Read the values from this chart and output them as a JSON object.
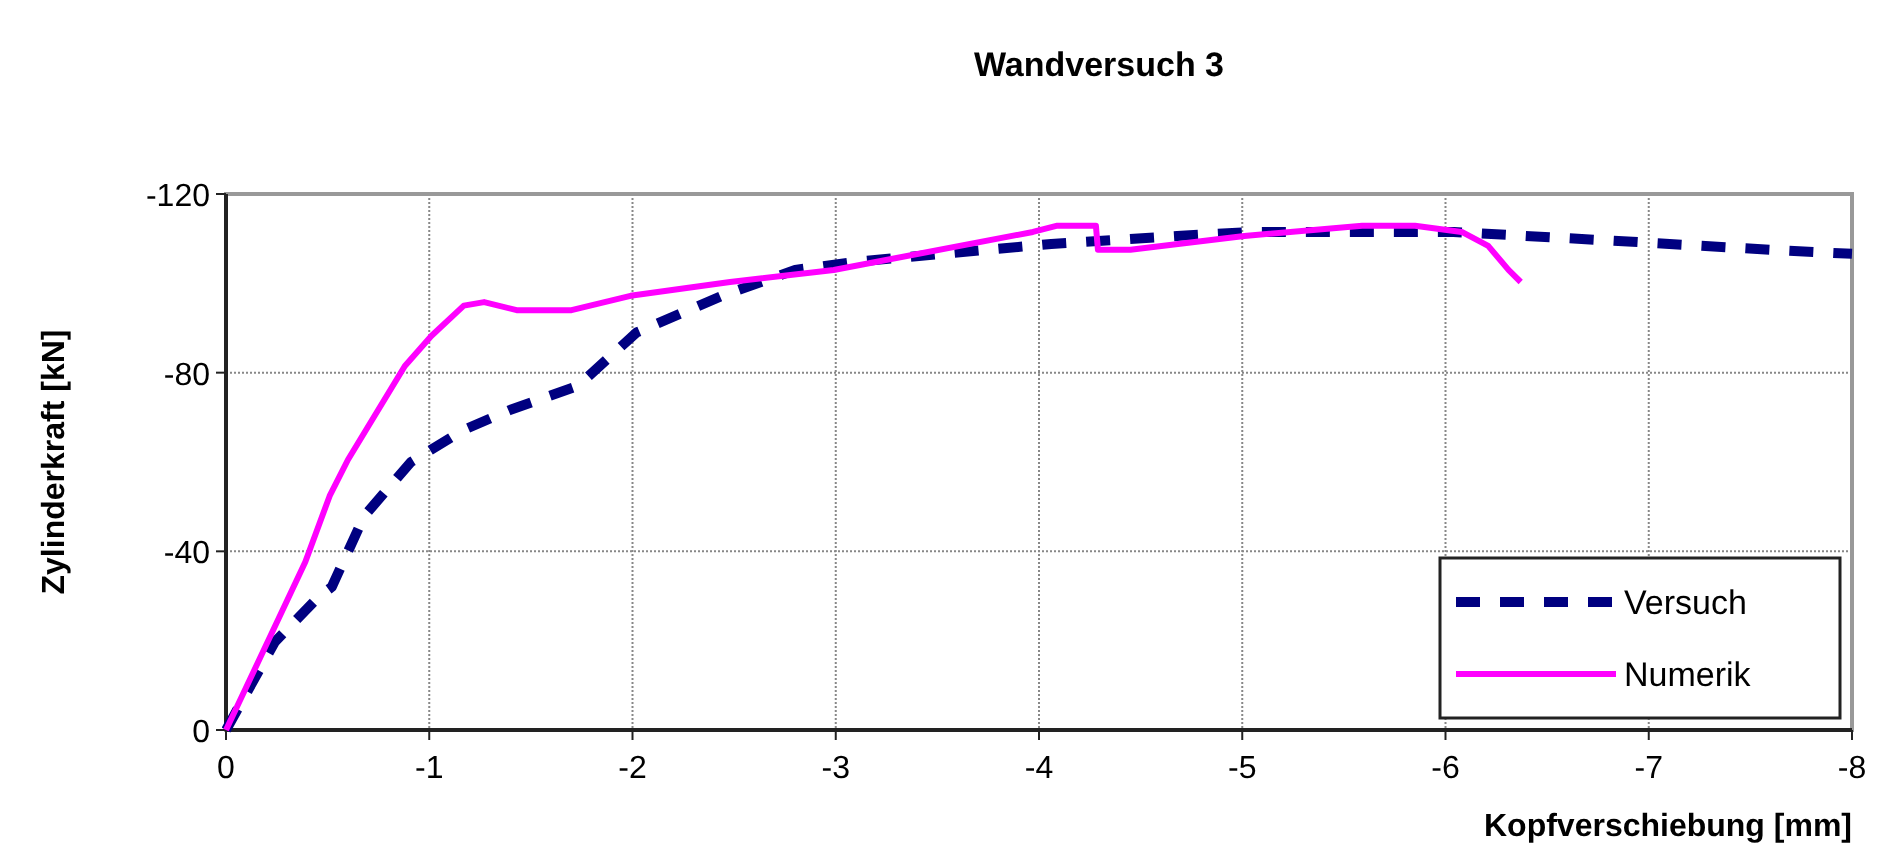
{
  "chart_data": {
    "type": "line",
    "title": "Wandversuch 3",
    "xlabel": "Kopfverschiebung [mm]",
    "ylabel": "Zylinderkraft [kN]",
    "xlim": [
      0,
      -8
    ],
    "ylim": [
      0,
      -120
    ],
    "xticks": [
      0,
      -1,
      -2,
      -3,
      -4,
      -5,
      -6,
      -7,
      -8
    ],
    "yticks": [
      0,
      -40,
      -80,
      -120
    ],
    "grid": true,
    "legend": "bottom right",
    "marker": "none",
    "series": [
      {
        "name": "Versuch",
        "color": "#000080",
        "line_style": "dashed",
        "x": [
          0,
          -0.24,
          -0.46,
          -0.52,
          -0.68,
          -0.91,
          -1.17,
          -1.4,
          -1.73,
          -2.02,
          -2.44,
          -2.8,
          -3.09,
          -3.74,
          -4.06,
          -4.68,
          -5.04,
          -6.04,
          -6.92,
          -7.6,
          -8
        ],
        "values": [
          0,
          -19.7,
          -30,
          -32,
          -47.9,
          -60,
          -67.2,
          -71.7,
          -77,
          -89,
          -97.2,
          -103,
          -104.8,
          -107.5,
          -108.8,
          -110.6,
          -111.5,
          -111.5,
          -109.3,
          -107.5,
          -106.6
        ]
      },
      {
        "name": "Numerik",
        "color": "#ff00ff",
        "line_style": "solid",
        "x": [
          0,
          -0.39,
          -0.51,
          -0.6,
          -0.88,
          -1.01,
          -1.17,
          -1.27,
          -1.43,
          -1.7,
          -1.99,
          -2.48,
          -2.99,
          -3.97,
          -4.09,
          -4.28,
          -4.29,
          -4.45,
          -5.01,
          -5.59,
          -5.85,
          -6.08,
          -6.21,
          -6.31,
          -6.37
        ],
        "values": [
          0,
          -37.6,
          -52.4,
          -60.5,
          -81.5,
          -88.2,
          -95,
          -95.8,
          -94,
          -94,
          -97.2,
          -100.3,
          -103,
          -111.5,
          -112.9,
          -112.9,
          -107.5,
          -107.5,
          -110.6,
          -112.9,
          -112.9,
          -111.5,
          -108.4,
          -103,
          -100.3
        ]
      }
    ]
  }
}
